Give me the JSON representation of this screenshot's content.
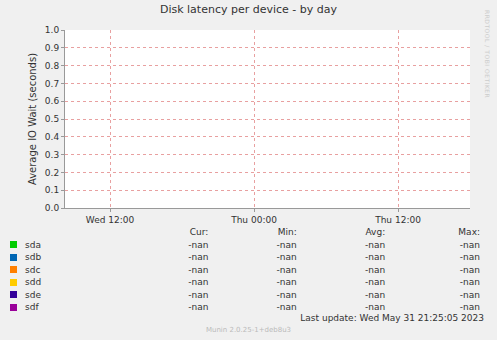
{
  "chart_data": {
    "type": "line",
    "title": "Disk latency per device - by day",
    "y_label": "Average IO Wait (seconds)",
    "x": [],
    "xlim": [
      8.25,
      42
    ],
    "xticks": [
      {
        "value": 12,
        "label": "Wed 12:00"
      },
      {
        "value": 24,
        "label": "Thu 00:00"
      },
      {
        "value": 36,
        "label": "Thu 12:00"
      }
    ],
    "ylim": [
      0,
      1
    ],
    "yticks": [
      {
        "value": 0,
        "label": "0.0"
      },
      0.1,
      0.2,
      0.3,
      0.4,
      0.5,
      0.6,
      0.7,
      0.8,
      0.9,
      {
        "value": 1,
        "label": "1.0"
      }
    ],
    "grid": true,
    "legend_columns": [
      "Cur:",
      "Min:",
      "Avg:",
      "Max:"
    ],
    "series": [
      {
        "name": "sda",
        "color": "#00cc00",
        "values": [],
        "stats": [
          "-nan",
          "-nan",
          "-nan",
          "-nan"
        ]
      },
      {
        "name": "sdb",
        "color": "#0066b3",
        "values": [],
        "stats": [
          "-nan",
          "-nan",
          "-nan",
          "-nan"
        ]
      },
      {
        "name": "sdc",
        "color": "#ff8000",
        "values": [],
        "stats": [
          "-nan",
          "-nan",
          "-nan",
          "-nan"
        ]
      },
      {
        "name": "sdd",
        "color": "#ffcc00",
        "values": [],
        "stats": [
          "-nan",
          "-nan",
          "-nan",
          "-nan"
        ]
      },
      {
        "name": "sde",
        "color": "#330099",
        "values": [],
        "stats": [
          "-nan",
          "-nan",
          "-nan",
          "-nan"
        ]
      },
      {
        "name": "sdf",
        "color": "#990099",
        "values": [],
        "stats": [
          "-nan",
          "-nan",
          "-nan",
          "-nan"
        ]
      }
    ],
    "last_update": "Last update: Wed May 31 21:25:05 2023",
    "footer": "Munin 2.0.25-1+deb8u3",
    "side_text": "RRDTOOL / TOBI OETIKER"
  }
}
